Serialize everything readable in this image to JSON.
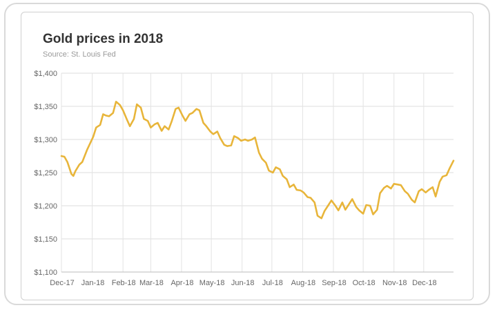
{
  "chart_data": {
    "type": "line",
    "title": "Gold prices in 2018",
    "subtitle": "Source: St. Louis Fed",
    "xlabel": "",
    "ylabel": "",
    "ylim": [
      1100,
      1400
    ],
    "yticks": [
      1100,
      1150,
      1200,
      1250,
      1300,
      1350,
      1400
    ],
    "ytick_labels": [
      "$1,100",
      "$1,150",
      "$1,200",
      "$1,250",
      "$1,300",
      "$1,350",
      "$1,400"
    ],
    "xlim": [
      "2017-12-01",
      "2018-12-31"
    ],
    "xticks": [
      "2017-12-01",
      "2018-01-01",
      "2018-02-01",
      "2018-03-01",
      "2018-04-01",
      "2018-05-01",
      "2018-06-01",
      "2018-07-01",
      "2018-08-01",
      "2018-09-01",
      "2018-10-01",
      "2018-11-01",
      "2018-12-01"
    ],
    "xtick_labels": [
      "Dec-17",
      "Jan-18",
      "Feb-18",
      "Mar-18",
      "Apr-18",
      "May-18",
      "Jun-18",
      "Jul-18",
      "Aug-18",
      "Sep-18",
      "Oct-18",
      "Nov-18",
      "Dec-18"
    ],
    "grid": true,
    "line_color": "#e8b53a",
    "series": [
      {
        "x": [
          "2017-12-01",
          "2017-12-04",
          "2017-12-07",
          "2017-12-11",
          "2017-12-13",
          "2017-12-15",
          "2017-12-19",
          "2017-12-22",
          "2017-12-27",
          "2018-01-02",
          "2018-01-05",
          "2018-01-09",
          "2018-01-12",
          "2018-01-15",
          "2018-01-18",
          "2018-01-22",
          "2018-01-25",
          "2018-01-29",
          "2018-02-01",
          "2018-02-05",
          "2018-02-08",
          "2018-02-12",
          "2018-02-15",
          "2018-02-19",
          "2018-02-22",
          "2018-02-26",
          "2018-03-01",
          "2018-03-05",
          "2018-03-08",
          "2018-03-12",
          "2018-03-15",
          "2018-03-19",
          "2018-03-22",
          "2018-03-26",
          "2018-03-29",
          "2018-04-02",
          "2018-04-05",
          "2018-04-09",
          "2018-04-12",
          "2018-04-16",
          "2018-04-19",
          "2018-04-23",
          "2018-04-26",
          "2018-04-30",
          "2018-05-03",
          "2018-05-07",
          "2018-05-10",
          "2018-05-14",
          "2018-05-17",
          "2018-05-21",
          "2018-05-24",
          "2018-05-28",
          "2018-05-31",
          "2018-06-04",
          "2018-06-07",
          "2018-06-11",
          "2018-06-14",
          "2018-06-18",
          "2018-06-21",
          "2018-06-25",
          "2018-06-28",
          "2018-07-02",
          "2018-07-05",
          "2018-07-09",
          "2018-07-12",
          "2018-07-16",
          "2018-07-19",
          "2018-07-23",
          "2018-07-26",
          "2018-07-30",
          "2018-08-02",
          "2018-08-06",
          "2018-08-09",
          "2018-08-13",
          "2018-08-16",
          "2018-08-20",
          "2018-08-23",
          "2018-08-27",
          "2018-08-30",
          "2018-09-03",
          "2018-09-06",
          "2018-09-10",
          "2018-09-13",
          "2018-09-17",
          "2018-09-20",
          "2018-09-24",
          "2018-09-27",
          "2018-10-01",
          "2018-10-04",
          "2018-10-08",
          "2018-10-11",
          "2018-10-15",
          "2018-10-18",
          "2018-10-22",
          "2018-10-25",
          "2018-10-29",
          "2018-11-01",
          "2018-11-05",
          "2018-11-08",
          "2018-11-12",
          "2018-11-15",
          "2018-11-19",
          "2018-11-22",
          "2018-11-26",
          "2018-11-29",
          "2018-12-03",
          "2018-12-06",
          "2018-12-10",
          "2018-12-13",
          "2018-12-17",
          "2018-12-20",
          "2018-12-24",
          "2018-12-27",
          "2018-12-31"
        ],
        "y": [
          1275,
          1274,
          1266,
          1248,
          1245,
          1252,
          1262,
          1266,
          1285,
          1304,
          1318,
          1322,
          1338,
          1336,
          1335,
          1340,
          1357,
          1352,
          1344,
          1330,
          1320,
          1331,
          1353,
          1348,
          1331,
          1328,
          1318,
          1323,
          1325,
          1313,
          1320,
          1315,
          1327,
          1346,
          1348,
          1336,
          1328,
          1338,
          1340,
          1346,
          1344,
          1325,
          1320,
          1312,
          1308,
          1312,
          1302,
          1292,
          1290,
          1291,
          1305,
          1302,
          1298,
          1300,
          1298,
          1300,
          1303,
          1280,
          1271,
          1265,
          1253,
          1250,
          1258,
          1255,
          1245,
          1240,
          1228,
          1232,
          1224,
          1223,
          1220,
          1213,
          1212,
          1205,
          1185,
          1181,
          1192,
          1201,
          1208,
          1200,
          1193,
          1205,
          1194,
          1203,
          1210,
          1198,
          1193,
          1188,
          1201,
          1200,
          1187,
          1194,
          1219,
          1227,
          1230,
          1226,
          1233,
          1232,
          1231,
          1222,
          1218,
          1209,
          1205,
          1222,
          1225,
          1220,
          1224,
          1228,
          1214,
          1236,
          1244,
          1246,
          1256,
          1268
        ]
      }
    ]
  }
}
